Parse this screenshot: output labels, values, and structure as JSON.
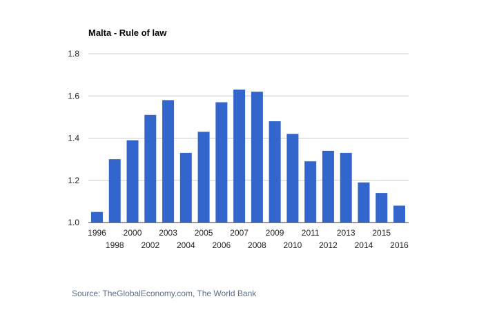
{
  "chart_data": {
    "type": "bar",
    "title": "Malta - Rule of law",
    "xlabel": "",
    "ylabel": "",
    "categories": [
      "1996",
      "1998",
      "2000",
      "2002",
      "2003",
      "2004",
      "2005",
      "2006",
      "2007",
      "2008",
      "2009",
      "2010",
      "2011",
      "2012",
      "2013",
      "2014",
      "2015",
      "2016"
    ],
    "values": [
      1.05,
      1.3,
      1.39,
      1.51,
      1.58,
      1.33,
      1.43,
      1.57,
      1.63,
      1.62,
      1.48,
      1.42,
      1.29,
      1.34,
      1.33,
      1.19,
      1.14,
      1.08
    ],
    "ylim": [
      1.0,
      1.8
    ],
    "yticks": [
      "1.0",
      "1.2",
      "1.4",
      "1.6",
      "1.8"
    ],
    "grid": true,
    "bar_color": "#3366cc",
    "grid_color": "#cccccc"
  },
  "source": "Source: TheGlobalEconomy.com, The World Bank"
}
